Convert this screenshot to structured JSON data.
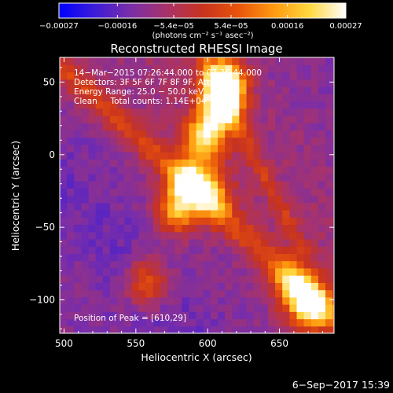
{
  "chart_data": {
    "type": "heatmap",
    "title": "Reconstructed RHESSI Image",
    "xlabel": "Heliocentric X (arcsec)",
    "ylabel": "Heliocentric Y (arcsec)",
    "xlim": [
      497,
      688
    ],
    "ylim": [
      -123,
      67
    ],
    "x_ticks": [
      500,
      550,
      600,
      650
    ],
    "y_ticks": [
      50,
      0,
      -50,
      -100
    ],
    "x_tick_labels": [
      "500",
      "550",
      "600",
      "650"
    ],
    "y_tick_labels": [
      "50",
      "0",
      "−50",
      "−100"
    ],
    "colorbar": {
      "min": -0.00027,
      "max": 0.00027,
      "ticks": [
        -0.00027,
        -0.00016,
        -5.4e-05,
        5.4e-05,
        0.00016,
        0.00027
      ],
      "tick_labels": [
        "−0.00027",
        "−0.00016",
        "−5.4e−05",
        "5.4e−05",
        "0.00016",
        "0.00027"
      ],
      "units_label": "(photons cm⁻² s⁻¹ asec⁻²)",
      "colormap": [
        "#0000ff",
        "#3c1cd8",
        "#7a2ea8",
        "#a8336a",
        "#c8331f",
        "#e8540a",
        "#ff9a10",
        "#ffd840",
        "#ffffff"
      ]
    },
    "info_lines": [
      "14−Mar−2015 07:26:44.000 to 07:36:44.000",
      "Detectors: 3F 5F 6F 7F 8F 9F, Att 0",
      "Energy Range: 25.0 − 50.0 keV",
      "Clean     Total counts: 1.14E+04"
    ],
    "peak_label": "Position of Peak = [610,29]",
    "peak": [
      610,
      29
    ],
    "emission_features": [
      {
        "x": 610,
        "y": 35,
        "relative_intensity": 1.0
      },
      {
        "x": 612,
        "y": 52,
        "relative_intensity": 0.9
      },
      {
        "x": 598,
        "y": 12,
        "relative_intensity": 0.8
      },
      {
        "x": 588,
        "y": -18,
        "relative_intensity": 0.7
      },
      {
        "x": 578,
        "y": -38,
        "relative_intensity": 0.65
      },
      {
        "x": 602,
        "y": -28,
        "relative_intensity": 0.55
      },
      {
        "x": 558,
        "y": -88,
        "relative_intensity": 0.5
      },
      {
        "x": 672,
        "y": -105,
        "relative_intensity": 0.8
      },
      {
        "x": 660,
        "y": -90,
        "relative_intensity": 0.6
      }
    ]
  },
  "footer": {
    "date": "6−Sep−2017 15:39"
  }
}
